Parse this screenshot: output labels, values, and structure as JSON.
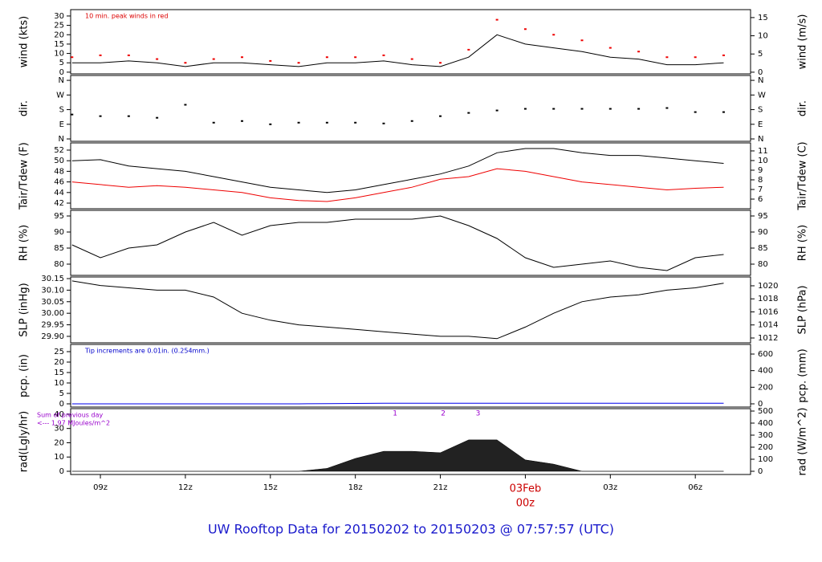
{
  "title": "UW Rooftop Data for 20150202  to  20150203 @ 07:57:57  (UTC)",
  "chart_data": [
    {
      "type": "line",
      "ylabel": "wind (kts)",
      "y2label": "wind (m/s)",
      "xlim": [
        -16.05,
        7.95
      ],
      "x": [
        -16,
        -15,
        -14,
        -13,
        -12,
        -11,
        -10,
        -9,
        -8,
        -7,
        -6,
        -5,
        -4,
        -3,
        -2,
        -1,
        0,
        1,
        2,
        3,
        4,
        5,
        6,
        7
      ],
      "ylim": [
        -0.9,
        33.4
      ],
      "yticks": [
        0,
        5,
        10,
        15,
        20,
        25,
        30
      ],
      "y2lim": [
        -0.46,
        17.18
      ],
      "y2ticks": [
        0,
        5,
        10,
        15
      ],
      "notes": [
        {
          "text": "10 min. peak winds in red",
          "color": "#dd0000"
        }
      ],
      "series": [
        {
          "color": "#000000",
          "values": [
            5,
            5,
            6,
            5,
            3,
            5,
            5,
            4,
            3,
            5,
            5,
            6,
            4,
            3,
            8,
            20,
            15,
            13,
            11,
            8,
            7,
            4,
            4,
            5
          ]
        },
        {
          "color": "#ee0000",
          "type": "points",
          "values": [
            8,
            9,
            9,
            7,
            5,
            7,
            8,
            6,
            5,
            8,
            8,
            9,
            7,
            5,
            12,
            28,
            23,
            20,
            17,
            13,
            11,
            8,
            8,
            9
          ]
        }
      ]
    },
    {
      "type": "scatter",
      "ylabel": "dir.",
      "y2label": "dir.",
      "xlim": [
        -16.05,
        7.95
      ],
      "x": [
        -16,
        -15,
        -14,
        -13,
        -12,
        -11,
        -10,
        -9,
        -8,
        -7,
        -6,
        -5,
        -4,
        -3,
        -2,
        -1,
        0,
        1,
        2,
        3,
        4,
        5,
        6,
        7
      ],
      "ylim": [
        -14.6,
        390
      ],
      "yticks": [
        {
          "value": 0,
          "label": "N"
        },
        {
          "value": 90,
          "label": "E"
        },
        {
          "value": 180,
          "label": "S"
        },
        {
          "value": 270,
          "label": "W"
        },
        {
          "value": 360,
          "label": "N"
        }
      ],
      "y2lim": [
        -14.6,
        390
      ],
      "y2ticks": [
        {
          "value": 0,
          "label": "N"
        },
        {
          "value": 90,
          "label": "E"
        },
        {
          "value": 180,
          "label": "S"
        },
        {
          "value": 270,
          "label": "W"
        },
        {
          "value": 360,
          "label": "N"
        }
      ],
      "series": [
        {
          "color": "#000000",
          "values": [
            150,
            140,
            140,
            130,
            210,
            100,
            110,
            90,
            100,
            100,
            100,
            95,
            110,
            140,
            160,
            175,
            185,
            185,
            185,
            185,
            185,
            190,
            165,
            165
          ]
        }
      ]
    },
    {
      "type": "line",
      "ylabel": "Tair/Tdew (F)",
      "y2label": "Tair/Tdew (C)",
      "xlim": [
        -16.05,
        7.95
      ],
      "x": [
        -16,
        -15,
        -14,
        -13,
        -12,
        -11,
        -10,
        -9,
        -8,
        -7,
        -6,
        -5,
        -4,
        -3,
        -2,
        -1,
        0,
        1,
        2,
        3,
        4,
        5,
        6,
        7
      ],
      "ylim": [
        40.94,
        53.36
      ],
      "yticks": [
        42,
        44,
        46,
        48,
        50,
        52
      ],
      "y2lim": [
        5,
        11.83
      ],
      "y2ticks": [
        6,
        7,
        8,
        9,
        10,
        11
      ],
      "series": [
        {
          "color": "#000000",
          "values": [
            50,
            50.2,
            49,
            48.5,
            48,
            47,
            46,
            45,
            44.5,
            44,
            44.5,
            45.5,
            46.5,
            47.5,
            49,
            51.5,
            52.3,
            52.3,
            51.5,
            51,
            51,
            50.5,
            50,
            49.5
          ]
        },
        {
          "color": "#ee0000",
          "values": [
            46,
            45.5,
            45,
            45.3,
            45,
            44.5,
            44,
            43,
            42.5,
            42.3,
            43,
            44,
            45,
            46.5,
            47,
            48.5,
            48,
            47,
            46,
            45.5,
            45,
            44.5,
            44.8,
            45
          ]
        }
      ]
    },
    {
      "type": "line",
      "ylabel": "RH (%)",
      "y2label": "RH (%)",
      "xlim": [
        -16.05,
        7.95
      ],
      "x": [
        -16,
        -15,
        -14,
        -13,
        -12,
        -11,
        -10,
        -9,
        -8,
        -7,
        -6,
        -5,
        -4,
        -3,
        -2,
        -1,
        0,
        1,
        2,
        3,
        4,
        5,
        6,
        7
      ],
      "ylim": [
        76.5,
        96.75
      ],
      "yticks": [
        80,
        85,
        90,
        95
      ],
      "y2lim": [
        76.5,
        96.75
      ],
      "y2ticks": [
        80,
        85,
        90,
        95
      ],
      "series": [
        {
          "color": "#000000",
          "values": [
            86,
            82,
            85,
            86,
            90,
            93,
            89,
            92,
            93,
            93,
            94,
            94,
            94,
            95,
            92,
            88,
            82,
            79,
            80,
            81,
            79,
            78,
            82,
            83
          ]
        }
      ]
    },
    {
      "type": "line",
      "ylabel": "SLP (inHg)",
      "y2label": "SLP (hPa)",
      "xlim": [
        -16.05,
        7.95
      ],
      "x": [
        -16,
        -15,
        -14,
        -13,
        -12,
        -11,
        -10,
        -9,
        -8,
        -7,
        -6,
        -5,
        -4,
        -3,
        -2,
        -1,
        0,
        1,
        2,
        3,
        4,
        5,
        6,
        7
      ],
      "ylim": [
        29.872,
        30.157
      ],
      "yticks": [
        {
          "value": 29.9,
          "label": "29.90"
        },
        29.95,
        {
          "value": 30.0,
          "label": "30.00"
        },
        30.05,
        {
          "value": 30.1,
          "label": "30.10"
        },
        30.15
      ],
      "y2lim": [
        1011.26,
        1021.35
      ],
      "y2ticks": [
        1012,
        1014,
        1016,
        1018,
        1020
      ],
      "series": [
        {
          "color": "#000000",
          "values": [
            30.14,
            30.12,
            30.11,
            30.1,
            30.1,
            30.07,
            30,
            29.97,
            29.95,
            29.94,
            29.93,
            29.92,
            29.91,
            29.9,
            29.9,
            29.89,
            29.94,
            30,
            30.05,
            30.07,
            30.08,
            30.1,
            30.11,
            30.13
          ]
        }
      ]
    },
    {
      "type": "line",
      "ylabel": "pcp. (in)",
      "y2label": "pcp. (mm)",
      "xlim": [
        -16.05,
        7.95
      ],
      "x": [
        -16,
        -15,
        -14,
        -13,
        -12,
        -11,
        -10,
        -9,
        -8,
        -7,
        -6,
        -5,
        -4,
        -3,
        -2,
        -1,
        0,
        1,
        2,
        3,
        4,
        5,
        6,
        7
      ],
      "ylim": [
        -1.54,
        28.46
      ],
      "yticks": [
        0,
        5,
        10,
        15,
        20,
        25
      ],
      "y2lim": [
        -38.7,
        716
      ],
      "y2ticks": [
        0,
        200,
        400,
        600
      ],
      "notes": [
        {
          "text": "Tip increments are 0.01in. (0.254mm.)",
          "color": "#0000cc"
        }
      ],
      "series": [
        {
          "color": "#0000ee",
          "values": [
            0,
            0,
            0,
            0,
            0,
            0,
            0,
            0,
            0,
            0.1,
            0.2,
            0.3,
            0.3,
            0.3,
            0.3,
            0.3,
            0.3,
            0.3,
            0.3,
            0.3,
            0.3,
            0.3,
            0.3,
            0.3
          ]
        }
      ]
    },
    {
      "type": "area",
      "ylabel": "rad(Lgly/hr)",
      "y2label": "rad (W/m^2)",
      "xlim": [
        -16.05,
        7.95
      ],
      "x": [
        -16,
        -15,
        -14,
        -13,
        -12,
        -11,
        -10,
        -9,
        -8,
        -7,
        -6,
        -5,
        -4,
        -3,
        -2,
        -1,
        0,
        1,
        2,
        3,
        4,
        5,
        6,
        7
      ],
      "ylim": [
        -2.25,
        43.9
      ],
      "yticks": [
        0,
        10,
        20,
        30,
        40
      ],
      "y2lim": [
        -26.7,
        520
      ],
      "y2ticks": [
        0,
        100,
        200,
        300,
        400,
        500
      ],
      "notes": [
        {
          "text": "Sum of previous day",
          "color": "#9900cc"
        },
        {
          "text": "<--- 1.97 MJoules/m^2",
          "color": "#9900cc"
        }
      ],
      "markers": [
        {
          "x": -4.6,
          "label": "1"
        },
        {
          "x": -2.9,
          "label": "2"
        },
        {
          "x": -1.67,
          "label": "3"
        }
      ],
      "xticks": [
        {
          "value": -15,
          "label": "09z"
        },
        {
          "value": -12,
          "label": "12z"
        },
        {
          "value": -9,
          "label": "15z"
        },
        {
          "value": -6,
          "label": "18z"
        },
        {
          "value": -3,
          "label": "21z"
        },
        {
          "value": 0,
          "label": "00z"
        },
        {
          "value": 3,
          "label": "03z"
        },
        {
          "value": 6,
          "label": "06z"
        }
      ],
      "date_annotation": {
        "x": 0,
        "label": "03Feb",
        "color": "#cc0000"
      },
      "series": [
        {
          "color": "#222222",
          "values": [
            0,
            0,
            0,
            0,
            0,
            0,
            0,
            0,
            0,
            2,
            9,
            14,
            14,
            13,
            22,
            22,
            8,
            5,
            0,
            0,
            0,
            0,
            0,
            0
          ]
        }
      ]
    }
  ]
}
